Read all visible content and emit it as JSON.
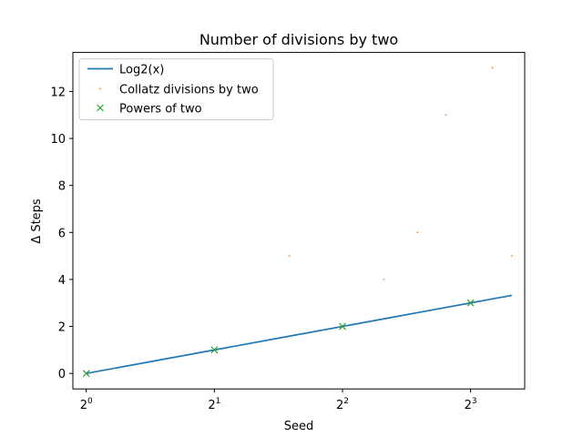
{
  "chart_data": {
    "type": "line",
    "title": "Number of divisions by two",
    "xlabel": "Seed",
    "ylabel": "Δ Steps",
    "x_scale": "log2",
    "xlim": [
      0.93,
      10.72
    ],
    "ylim": [
      -0.66,
      13.66
    ],
    "x_ticks": [
      {
        "value": 1,
        "base": "2",
        "exp": "0"
      },
      {
        "value": 2,
        "base": "2",
        "exp": "1"
      },
      {
        "value": 4,
        "base": "2",
        "exp": "2"
      },
      {
        "value": 8,
        "base": "2",
        "exp": "3"
      }
    ],
    "y_ticks": [
      0,
      2,
      4,
      6,
      8,
      10,
      12
    ],
    "grid": false,
    "legend_position": "upper-left",
    "series": [
      {
        "name": "Log2(x)",
        "kind": "line",
        "color": "#1f77b4",
        "x": [
          1,
          2,
          3,
          4,
          5,
          6,
          7,
          8,
          9,
          10
        ],
        "y": [
          0,
          1,
          1.585,
          2,
          2.322,
          2.585,
          2.807,
          3,
          3.17,
          3.322
        ]
      },
      {
        "name": "Collatz divisions by two",
        "kind": "points",
        "color": "#ff7f0e",
        "x": [
          1,
          2,
          3,
          4,
          5,
          6,
          7,
          8,
          9,
          10
        ],
        "y": [
          0,
          1,
          5,
          2,
          4,
          6,
          11,
          3,
          13,
          5
        ]
      },
      {
        "name": "Powers of two",
        "kind": "x-markers",
        "color": "#2ca02c",
        "x": [
          1,
          2,
          4,
          8
        ],
        "y": [
          0,
          1,
          2,
          3
        ]
      }
    ]
  }
}
